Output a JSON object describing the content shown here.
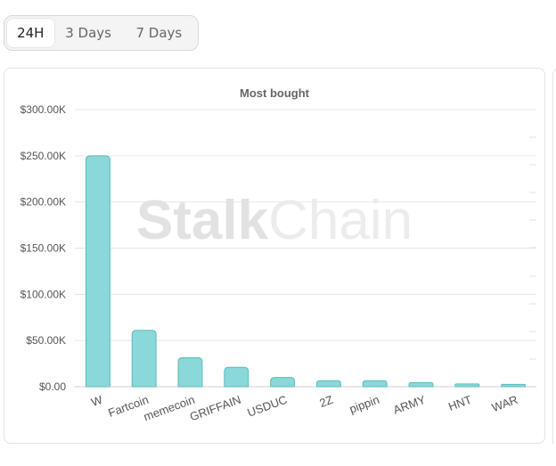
{
  "tabs": [
    {
      "label": "24H",
      "active": true
    },
    {
      "label": "3 Days",
      "active": false
    },
    {
      "label": "7 Days",
      "active": false
    }
  ],
  "watermark": {
    "strong": "Stalk",
    "light": "Chain"
  },
  "colors": {
    "bar_fill": "#8ad8d8",
    "bar_stroke": "#5bbcbc",
    "grid": "#e6e6e6",
    "axis_text": "#555555"
  },
  "chart_data": {
    "type": "bar",
    "title": "Most bought",
    "xlabel": "",
    "ylabel": "",
    "categories": [
      "W",
      "Fartcoin",
      "memecoin",
      "GRIFFAIN",
      "USDUC",
      "2Z",
      "pippin",
      "ARMY",
      "HNT",
      "WAR"
    ],
    "values": [
      250000,
      61000,
      31500,
      21000,
      10000,
      6500,
      6500,
      4500,
      3000,
      2500
    ],
    "ylim": [
      0,
      300000
    ],
    "yticks": [
      0,
      50000,
      100000,
      150000,
      200000,
      250000,
      300000
    ],
    "ytick_labels": [
      "$0.00",
      "$50.00K",
      "$100.00K",
      "$150.00K",
      "$200.00K",
      "$250.00K",
      "$300.00K"
    ],
    "grid": true,
    "legend": "none"
  }
}
